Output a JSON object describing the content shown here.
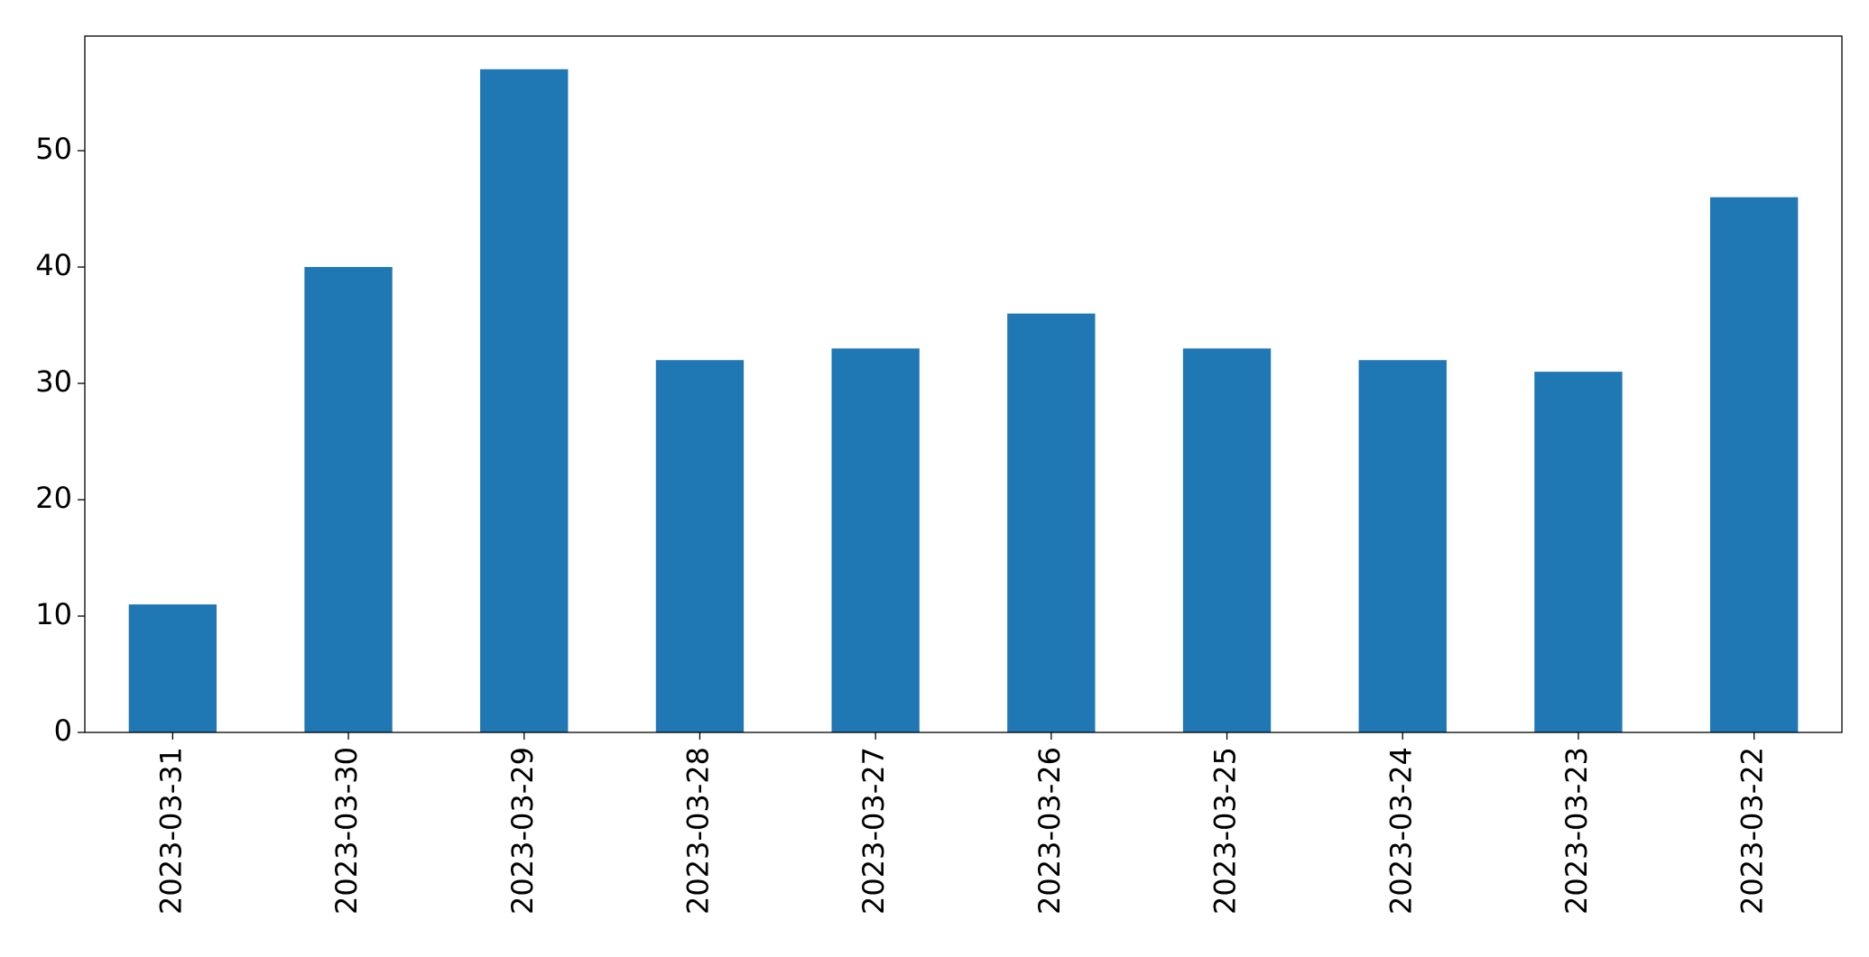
{
  "chart_data": {
    "type": "bar",
    "categories": [
      "2023-03-31",
      "2023-03-30",
      "2023-03-29",
      "2023-03-28",
      "2023-03-27",
      "2023-03-26",
      "2023-03-25",
      "2023-03-24",
      "2023-03-23",
      "2023-03-22"
    ],
    "values": [
      11,
      40,
      57,
      32,
      33,
      36,
      33,
      32,
      31,
      46
    ],
    "color": "#1f77b4",
    "ylim": [
      0,
      59.85
    ],
    "yticks": [
      0,
      10,
      20,
      30,
      40,
      50
    ],
    "grid": false
  }
}
